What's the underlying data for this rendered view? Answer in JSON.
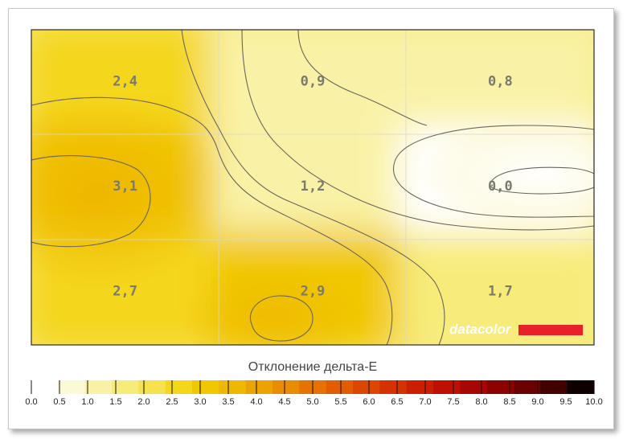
{
  "chart_data": {
    "type": "heatmap",
    "title": "",
    "rows": 3,
    "cols": 3,
    "values": [
      [
        2.4,
        0.9,
        0.8
      ],
      [
        3.1,
        1.2,
        0.0
      ],
      [
        2.7,
        2.9,
        1.7
      ]
    ],
    "cell_labels": [
      [
        "2,4",
        "0,9",
        "0,8"
      ],
      [
        "3,1",
        "1,2",
        "0,0"
      ],
      [
        "2,7",
        "2,9",
        "1,7"
      ]
    ],
    "colorbar": {
      "title": "Отклонение дельта-E",
      "range": [
        0,
        10
      ],
      "tick_labels": [
        "0.0",
        "0.5",
        "1.0",
        "1.5",
        "2.0",
        "2.5",
        "3.0",
        "3.5",
        "4.0",
        "4.5",
        "5.0",
        "5.5",
        "6.0",
        "6.5",
        "7.0",
        "7.5",
        "8.0",
        "8.5",
        "9.0",
        "9.5",
        "10.0"
      ],
      "colors": [
        "#ffffff",
        "#fcf9d6",
        "#f9f2a6",
        "#f7ec7a",
        "#f5e24e",
        "#f4d61a",
        "#f1c800",
        "#eeb700",
        "#eca200",
        "#e98c00",
        "#e67300",
        "#e25c00",
        "#dd4600",
        "#d63100",
        "#cc1e00",
        "#bd1000",
        "#a80600",
        "#8d0200",
        "#6a0000",
        "#420000",
        "#0f0000"
      ]
    },
    "brand": {
      "text": "datacolor",
      "accent": "#e8202a"
    }
  }
}
